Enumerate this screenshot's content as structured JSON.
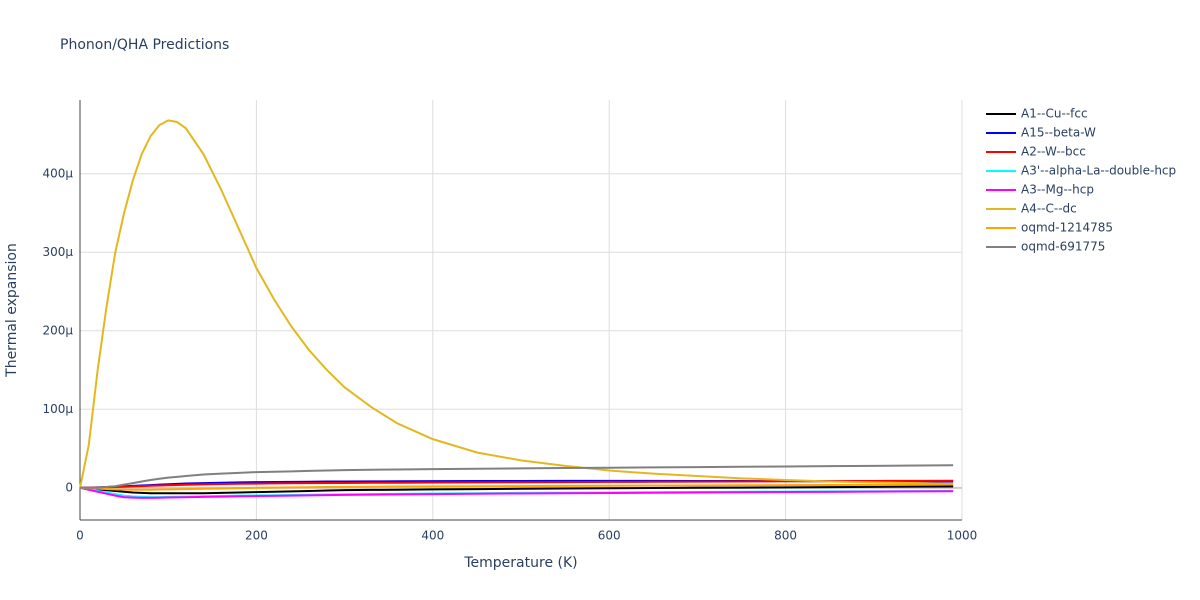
{
  "chart_data": {
    "type": "line",
    "title": "Phonon/QHA Predictions",
    "x_label": "Temperature (K)",
    "y_label": "Thermal expansion",
    "x": [
      0,
      10,
      20,
      30,
      40,
      50,
      60,
      70,
      80,
      90,
      100,
      110,
      120,
      140,
      160,
      180,
      200,
      220,
      240,
      260,
      280,
      300,
      330,
      360,
      400,
      450,
      500,
      550,
      600,
      650,
      700,
      750,
      800,
      850,
      900,
      950,
      990
    ],
    "xlim": [
      0,
      1000
    ],
    "xticks": [
      0,
      200,
      400,
      600,
      800,
      1000
    ],
    "ylim": [
      -4.1e-05,
      0.000494
    ],
    "yticks": [
      0,
      {
        "value": 0.0001,
        "label": "100µ"
      },
      {
        "value": 0.0002,
        "label": "200µ"
      },
      {
        "value": 0.0003,
        "label": "300µ"
      },
      {
        "value": 0.0004,
        "label": "400µ"
      }
    ],
    "grid": true,
    "series": [
      {
        "name": "A1--Cu--fcc",
        "color": "#000000",
        "values": [
          0,
          -1e-06,
          -2e-06,
          -3e-06,
          -4e-06,
          -5e-06,
          -6e-06,
          -6.5e-06,
          -7e-06,
          -7e-06,
          -7e-06,
          -7e-06,
          -7e-06,
          -7e-06,
          -6.5e-06,
          -6e-06,
          -5.5e-06,
          -5e-06,
          -4.5e-06,
          -4e-06,
          -3.5e-06,
          -3e-06,
          -2.7e-06,
          -2.4e-06,
          -2e-06,
          -1.6e-06,
          -1.2e-06,
          -8e-07,
          -5e-07,
          -2e-07,
          0,
          3e-07,
          6e-07,
          9e-07,
          1.2e-06,
          1.5e-06,
          1.7e-06
        ]
      },
      {
        "name": "A15--beta-W",
        "color": "#0000ff",
        "values": [
          0,
          2e-07,
          5e-07,
          1e-06,
          1.5e-06,
          2e-06,
          2.5e-06,
          3e-06,
          3.5e-06,
          4e-06,
          4.5e-06,
          5e-06,
          5.5e-06,
          6e-06,
          6.5e-06,
          7e-06,
          7.2e-06,
          7.4e-06,
          7.6e-06,
          7.8e-06,
          8e-06,
          8e-06,
          8.2e-06,
          8.3e-06,
          8.5e-06,
          8.6e-06,
          8.7e-06,
          8.8e-06,
          8.8e-06,
          8.8e-06,
          8.7e-06,
          8.6e-06,
          8.5e-06,
          8.4e-06,
          8.3e-06,
          8.2e-06,
          8.1e-06
        ]
      },
      {
        "name": "A2--W--bcc",
        "color": "#ff0000",
        "values": [
          0,
          1e-07,
          3e-07,
          6e-07,
          1e-06,
          1.4e-06,
          1.8e-06,
          2.2e-06,
          2.6e-06,
          3e-06,
          3.3e-06,
          3.6e-06,
          3.9e-06,
          4.4e-06,
          4.8e-06,
          5.1e-06,
          5.4e-06,
          5.6e-06,
          5.8e-06,
          6e-06,
          6.1e-06,
          6.2e-06,
          6.4e-06,
          6.5e-06,
          6.7e-06,
          6.9e-06,
          7.1e-06,
          7.3e-06,
          7.5e-06,
          7.7e-06,
          7.9e-06,
          8.1e-06,
          8.3e-06,
          8.5e-06,
          8.7e-06,
          8.9e-06,
          9e-06
        ]
      },
      {
        "name": "A3'--alpha-La--double-hcp",
        "color": "#00ffff",
        "values": [
          0,
          -2e-06,
          -4e-06,
          -6e-06,
          -8e-06,
          -1e-05,
          -1.1e-05,
          -1.15e-05,
          -1.18e-05,
          -1.18e-05,
          -1.16e-05,
          -1.14e-05,
          -1.12e-05,
          -1.08e-05,
          -1.04e-05,
          -1e-05,
          -9.7e-06,
          -9.4e-06,
          -9.1e-06,
          -8.8e-06,
          -8.5e-06,
          -8.3e-06,
          -8e-06,
          -7.7e-06,
          -7.3e-06,
          -6.9e-06,
          -6.5e-06,
          -6.2e-06,
          -5.9e-06,
          -5.6e-06,
          -5.3e-06,
          -5e-06,
          -4.8e-06,
          -4.6e-06,
          -4.4e-06,
          -4.2e-06,
          -4e-06
        ]
      },
      {
        "name": "A3--Mg--hcp",
        "color": "#ff00ff",
        "values": [
          0,
          -2.5e-06,
          -5e-06,
          -7.5e-06,
          -1e-05,
          -1.2e-05,
          -1.25e-05,
          -1.28e-05,
          -1.28e-05,
          -1.26e-05,
          -1.24e-05,
          -1.22e-05,
          -1.2e-05,
          -1.16e-05,
          -1.12e-05,
          -1.08e-05,
          -1.05e-05,
          -1.02e-05,
          -9.9e-06,
          -9.6e-06,
          -9.3e-06,
          -9e-06,
          -8.7e-06,
          -8.4e-06,
          -8e-06,
          -7.6e-06,
          -7.2e-06,
          -6.9e-06,
          -6.6e-06,
          -6.3e-06,
          -6e-06,
          -5.7e-06,
          -5.4e-06,
          -5.1e-06,
          -4.8e-06,
          -4.5e-06,
          -4.3e-06
        ]
      },
      {
        "name": "A4--C--dc",
        "color": "#e3b81f",
        "values": [
          0,
          5.5e-05,
          0.00015,
          0.00023,
          0.0003,
          0.00035,
          0.000392,
          0.000425,
          0.000448,
          0.000462,
          0.000468,
          0.000466,
          0.000458,
          0.000425,
          0.00038,
          0.00033,
          0.00028,
          0.00024,
          0.000205,
          0.000175,
          0.00015,
          0.000128,
          0.000103,
          8.2e-05,
          6.2e-05,
          4.5e-05,
          3.5e-05,
          2.8e-05,
          2.2e-05,
          1.8e-05,
          1.5e-05,
          1.2e-05,
          1e-05,
          8e-06,
          7e-06,
          6e-06,
          5e-06
        ]
      },
      {
        "name": "oqmd-1214785",
        "color": "#ffa500",
        "values": [
          0,
          -5e-07,
          -1e-06,
          -1.5e-06,
          -2e-06,
          -2.3e-06,
          -2.5e-06,
          -2.5e-06,
          -2.4e-06,
          -2.2e-06,
          -2e-06,
          -1.8e-06,
          -1.6e-06,
          -1.2e-06,
          -8e-07,
          -4e-07,
          0,
          3e-07,
          6e-07,
          8e-07,
          1e-06,
          1.2e-06,
          1.4e-06,
          1.6e-06,
          1.8e-06,
          2e-06,
          2.2e-06,
          2.4e-06,
          2.6e-06,
          2.8e-06,
          3e-06,
          3.2e-06,
          3.4e-06,
          3.6e-06,
          3.8e-06,
          4e-06,
          4.2e-06
        ]
      },
      {
        "name": "oqmd-691775",
        "color": "#808080",
        "values": [
          0,
          0,
          0,
          1e-06,
          2e-06,
          4e-06,
          6e-06,
          8e-06,
          1e-05,
          1.15e-05,
          1.3e-05,
          1.4e-05,
          1.5e-05,
          1.7e-05,
          1.8e-05,
          1.9e-05,
          2e-05,
          2.05e-05,
          2.1e-05,
          2.15e-05,
          2.2e-05,
          2.25e-05,
          2.3e-05,
          2.33e-05,
          2.38e-05,
          2.43e-05,
          2.48e-05,
          2.52e-05,
          2.56e-05,
          2.6e-05,
          2.64e-05,
          2.68e-05,
          2.72e-05,
          2.76e-05,
          2.8e-05,
          2.84e-05,
          2.87e-05
        ]
      }
    ]
  }
}
